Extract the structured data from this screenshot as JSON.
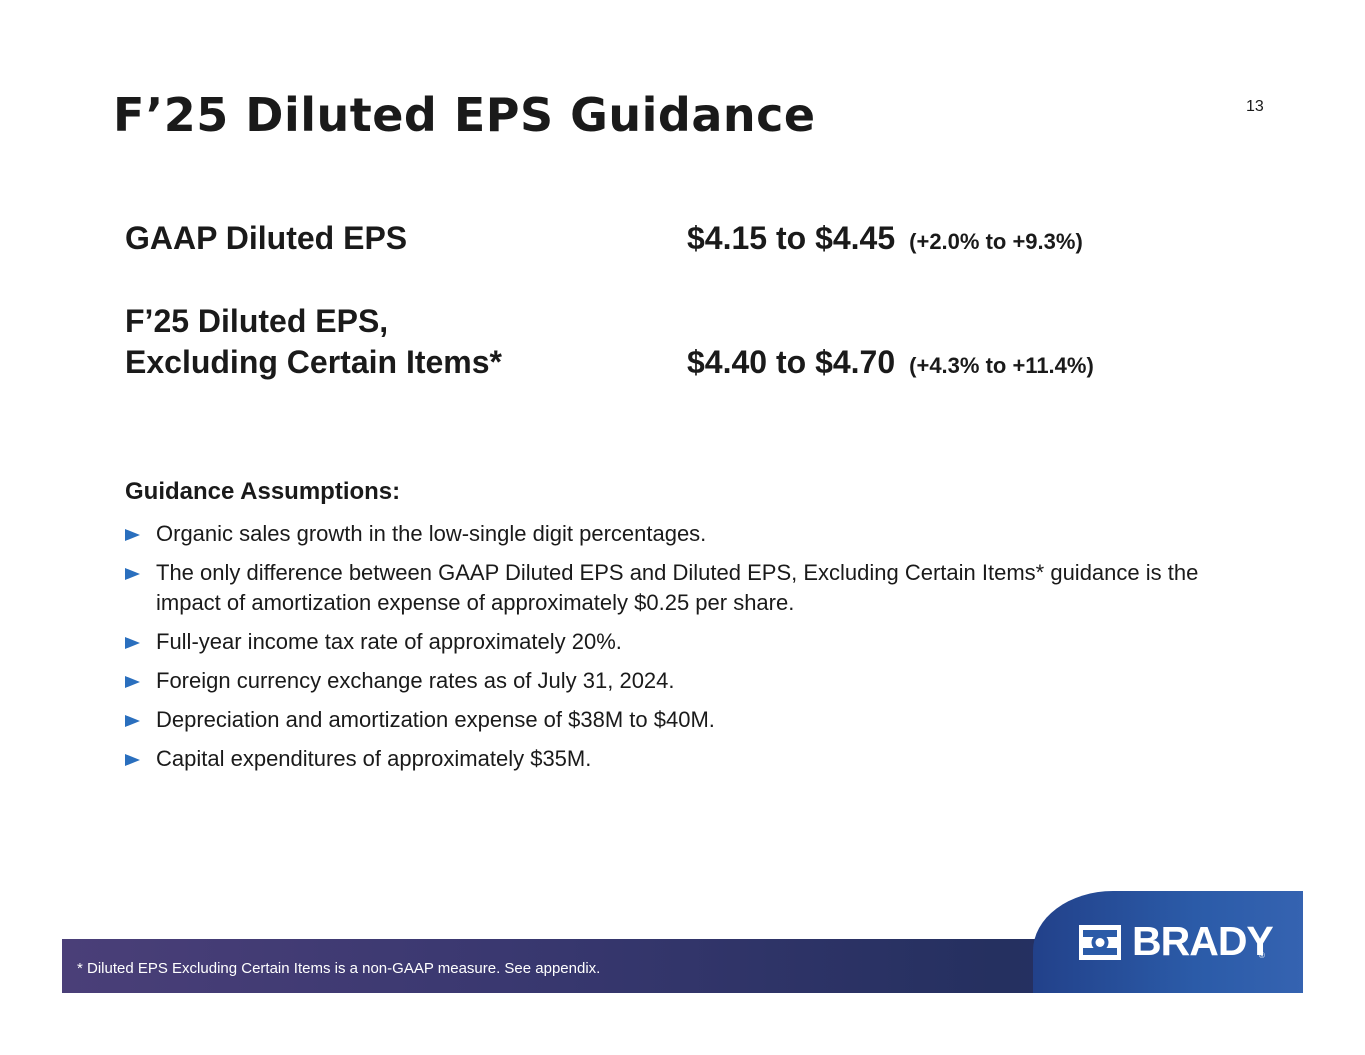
{
  "slide": {
    "title": "F’25 Diluted EPS Guidance",
    "page_number": "13"
  },
  "guidance": {
    "gaap_label": "GAAP Diluted EPS",
    "gaap_value": "$4.15 to $4.45",
    "gaap_change": "(+2.0% to +9.3%)",
    "adj_label_line1": "F’25 Diluted EPS,",
    "adj_label_line2": "Excluding Certain Items*",
    "adj_value": "$4.40 to $4.70",
    "adj_change": "(+4.3% to +11.4%)"
  },
  "assumptions": {
    "heading": "Guidance Assumptions:",
    "items": [
      "Organic sales growth in the low-single digit percentages.",
      "The only difference between GAAP Diluted EPS and Diluted EPS, Excluding Certain Items* guidance is the impact of amortization expense of approximately $0.25 per share.",
      "Full-year income tax rate of approximately 20%.",
      "Foreign currency exchange rates as of July 31, 2024.",
      "Depreciation and amortization expense of $38M to $40M.",
      "Capital expenditures of approximately $35M."
    ]
  },
  "footer": {
    "footnote": "*   Diluted EPS Excluding Certain Items is a non-GAAP measure.  See appendix.",
    "logo_text": "BRADY",
    "logo_reg": "®"
  },
  "colors": {
    "bullet_arrow": "#2a6fbe",
    "footer_bar": "#2f3468",
    "logo_tab": "#2b5ba8",
    "text": "#1a1a1a"
  },
  "icons": {
    "bullet": "triangle-right-icon",
    "logo": "brady-logo-icon"
  }
}
